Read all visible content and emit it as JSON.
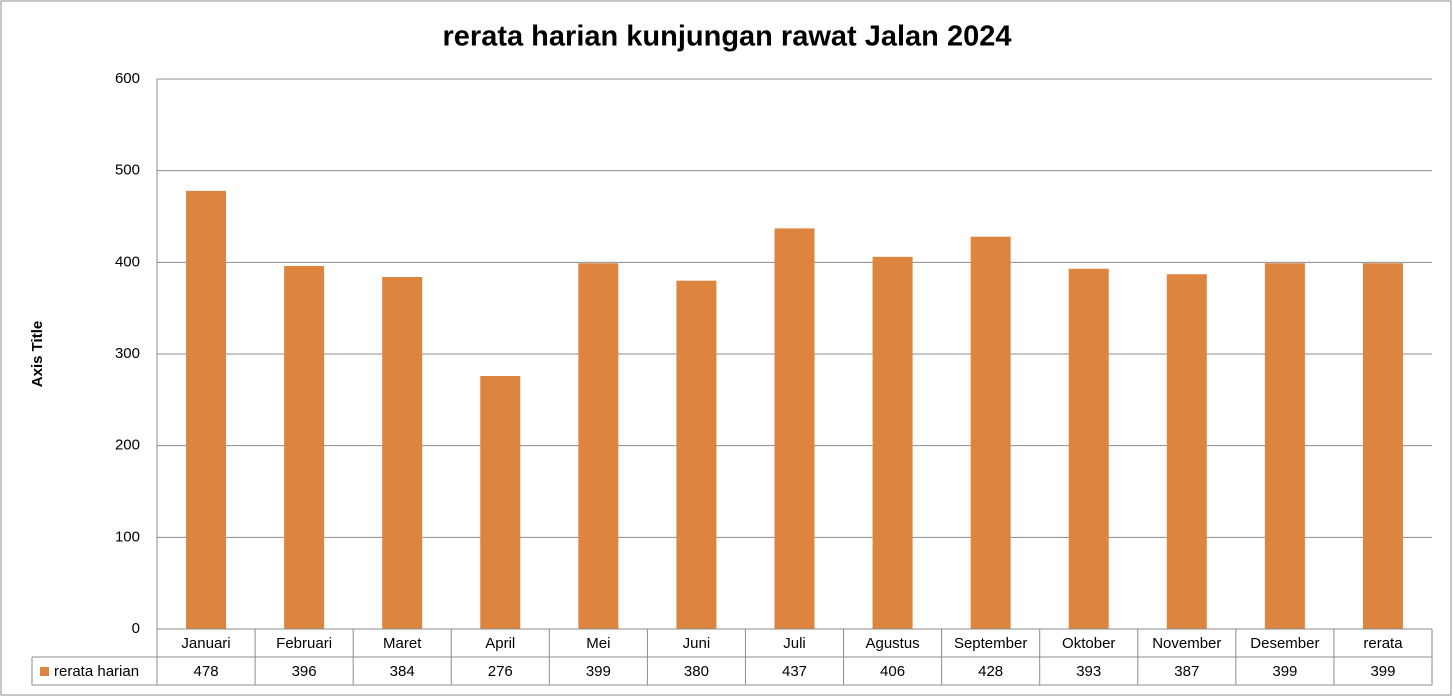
{
  "chart_data": {
    "type": "bar",
    "title": "rerata harian kunjungan rawat Jalan 2024",
    "y_label": "Axis Title",
    "categories": [
      "Januari",
      "Februari",
      "Maret",
      "April",
      "Mei",
      "Juni",
      "Juli",
      "Agustus",
      "September",
      "Oktober",
      "November",
      "Desember",
      "rerata"
    ],
    "series": [
      {
        "name": "rerata harian",
        "color": "#dd843f",
        "values": [
          478,
          396,
          384,
          276,
          399,
          380,
          437,
          406,
          428,
          393,
          387,
          399,
          399
        ]
      }
    ],
    "ylim": [
      0,
      600
    ],
    "yticks": [
      0,
      100,
      200,
      300,
      400,
      500,
      600
    ],
    "grid": true,
    "data_table": true
  }
}
